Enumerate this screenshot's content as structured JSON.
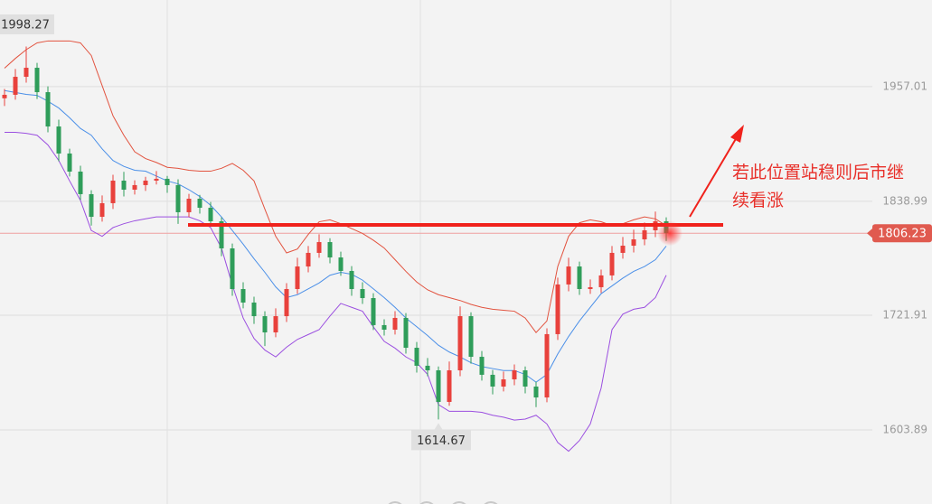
{
  "chart_data": {
    "type": "candlestick",
    "ylim": [
      1527.7,
      2046.1
    ],
    "yticks": [
      1957.01,
      1838.99,
      1721.91,
      1603.89
    ],
    "grid": true,
    "up_color": "#e8413c",
    "down_color": "#2f9d5a",
    "open": [
      1945.0,
      1948.6,
      1967.1,
      1976.4,
      1951.3,
      1916.0,
      1888.2,
      1869.6,
      1846.4,
      1823.1,
      1837.1,
      1860.3,
      1851.0,
      1855.7,
      1860.3,
      1862.2,
      1855.7,
      1827.8,
      1841.7,
      1832.4,
      1818.5,
      1790.6,
      1748.8,
      1734.9,
      1720.9,
      1704.2,
      1720.9,
      1748.8,
      1772.0,
      1786.0,
      1797.1,
      1781.3,
      1767.4,
      1748.8,
      1739.5,
      1711.7,
      1707.0,
      1719.1,
      1688.4,
      1669.9,
      1665.2,
      1632.7,
      1665.2,
      1720.9,
      1679.1,
      1660.6,
      1648.5,
      1655.9,
      1665.2,
      1648.5,
      1637.3,
      1702.4,
      1753.5,
      1772.0,
      1748.8,
      1750.7,
      1762.8,
      1786.0,
      1793.4,
      1799.9,
      1809.2,
      1818.5
    ],
    "close": [
      1948.6,
      1967.1,
      1976.4,
      1951.3,
      1916.0,
      1888.2,
      1869.6,
      1846.4,
      1823.1,
      1837.1,
      1860.3,
      1851.0,
      1855.7,
      1860.3,
      1862.2,
      1855.7,
      1827.8,
      1841.7,
      1832.4,
      1818.5,
      1790.6,
      1748.8,
      1734.9,
      1720.9,
      1704.2,
      1720.9,
      1748.8,
      1772.0,
      1786.0,
      1797.1,
      1781.3,
      1767.4,
      1748.8,
      1739.5,
      1711.7,
      1707.0,
      1719.1,
      1688.4,
      1669.9,
      1665.2,
      1632.7,
      1665.2,
      1720.9,
      1679.1,
      1660.6,
      1648.5,
      1655.9,
      1665.2,
      1648.5,
      1637.3,
      1702.4,
      1753.5,
      1772.0,
      1748.8,
      1750.7,
      1762.8,
      1786.0,
      1793.4,
      1799.9,
      1809.2,
      1818.5,
      1806.23
    ],
    "high": [
      1954.6,
      1975.1,
      1998.27,
      1981.4,
      1957.3,
      1923.0,
      1893.2,
      1875.6,
      1850.4,
      1845.1,
      1866.3,
      1869.3,
      1860.7,
      1864.3,
      1870.2,
      1865.2,
      1861.7,
      1846.7,
      1845.7,
      1838.4,
      1822.5,
      1795.6,
      1755.8,
      1740.9,
      1725.9,
      1728.9,
      1754.8,
      1781.0,
      1793.0,
      1805.1,
      1801.1,
      1787.3,
      1772.4,
      1755.8,
      1744.5,
      1717.7,
      1726.1,
      1724.1,
      1694.4,
      1677.9,
      1669.2,
      1674.2,
      1730.9,
      1724.9,
      1685.1,
      1665.6,
      1663.9,
      1671.2,
      1669.2,
      1653.5,
      1708.4,
      1760.5,
      1781.0,
      1777.0,
      1758.7,
      1768.8,
      1793.0,
      1802.4,
      1809.9,
      1817.2,
      1828.5,
      1822.5
    ],
    "low": [
      1937.0,
      1943.6,
      1961.1,
      1944.3,
      1910.0,
      1880.2,
      1864.6,
      1840.4,
      1814.1,
      1818.1,
      1831.1,
      1844.0,
      1846.0,
      1849.7,
      1856.3,
      1847.7,
      1815.8,
      1822.8,
      1826.4,
      1813.5,
      1782.6,
      1741.8,
      1728.9,
      1712.9,
      1690.2,
      1699.2,
      1714.9,
      1743.8,
      1766.0,
      1781.0,
      1775.3,
      1762.4,
      1741.8,
      1733.5,
      1706.7,
      1701.0,
      1702.0,
      1682.4,
      1662.9,
      1659.2,
      1614.67,
      1628.7,
      1659.2,
      1672.1,
      1654.6,
      1640.5,
      1643.5,
      1649.9,
      1641.5,
      1627.3,
      1632.3,
      1696.4,
      1746.5,
      1742.8,
      1743.8,
      1744.7,
      1757.8,
      1780.0,
      1786.4,
      1793.9,
      1802.2,
      1798.23
    ],
    "bands": [
      {
        "color": "#e2533f",
        "values": [
          1976,
          1986,
          1995,
          2002,
          2004,
          2004,
          2004,
          2002,
          1989,
          1958,
          1927,
          1907,
          1890,
          1883,
          1879,
          1874,
          1873,
          1871,
          1870,
          1870,
          1873,
          1878,
          1871,
          1860,
          1831,
          1803,
          1786,
          1790,
          1805,
          1818,
          1820,
          1816,
          1811,
          1806,
          1799,
          1791,
          1779,
          1767,
          1756,
          1748,
          1743,
          1740,
          1737,
          1733,
          1730,
          1728,
          1727,
          1726,
          1719,
          1704,
          1716,
          1772,
          1803,
          1817,
          1820,
          1818,
          1814,
          1816,
          1820,
          1823,
          1821,
          1814
        ]
      },
      {
        "color": "#4a8fe8",
        "values": [
          1953,
          1951,
          1949,
          1948,
          1942,
          1935,
          1925,
          1914,
          1907,
          1893,
          1881,
          1875,
          1871,
          1870,
          1865,
          1860,
          1857,
          1851,
          1844,
          1835,
          1823,
          1809,
          1795,
          1780,
          1766,
          1751,
          1740,
          1743,
          1749,
          1755,
          1763,
          1766,
          1764,
          1758,
          1749,
          1740,
          1730,
          1719,
          1710,
          1701,
          1691,
          1684,
          1679,
          1673,
          1669,
          1667,
          1665,
          1665,
          1661,
          1653,
          1661,
          1682,
          1700,
          1716,
          1730,
          1744,
          1752,
          1760,
          1767,
          1772,
          1779,
          1793
        ]
      },
      {
        "color": "#9b4fe0",
        "values": [
          1910,
          1910,
          1909,
          1907,
          1897,
          1881,
          1860,
          1840,
          1809,
          1803,
          1812,
          1816,
          1819,
          1821,
          1823,
          1823,
          1823,
          1823,
          1819,
          1812,
          1791,
          1753,
          1719,
          1698,
          1686,
          1679,
          1689,
          1697,
          1702,
          1707,
          1721,
          1734,
          1730,
          1726,
          1710,
          1695,
          1688,
          1679,
          1673,
          1661,
          1630,
          1623,
          1623,
          1623,
          1622,
          1619,
          1617,
          1614,
          1615,
          1619,
          1610,
          1591,
          1582,
          1593,
          1610,
          1647,
          1707,
          1723,
          1728,
          1730,
          1740,
          1763
        ]
      }
    ],
    "last_price": 1806.23,
    "support_line": 1814.8,
    "annotation_lines": [
      "若此位置站稳则后市继",
      "续看涨"
    ]
  }
}
